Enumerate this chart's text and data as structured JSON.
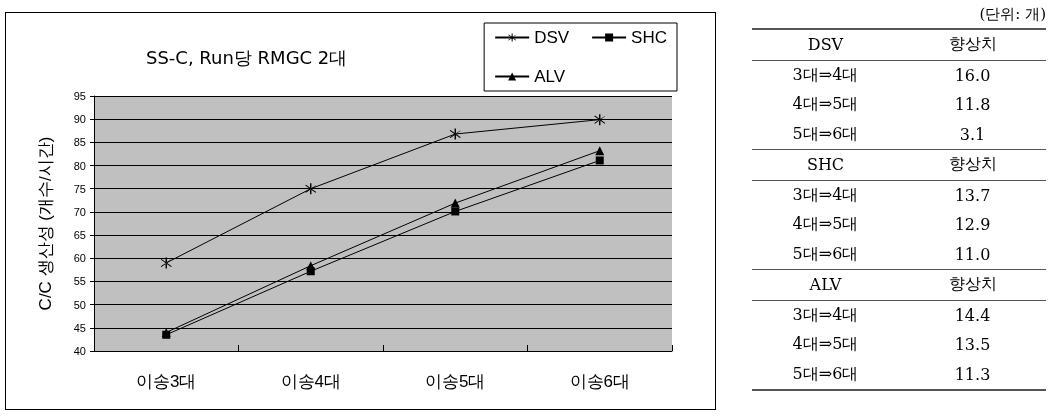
{
  "chart_data": [
    {
      "type": "line",
      "title": "SS-C, Run당 RMGC 2대",
      "ylabel": "C/C 생산성 (개수/시간)",
      "categories": [
        "이송3대",
        "이송4대",
        "이송5대",
        "이송6대"
      ],
      "series": [
        {
          "name": "DSV",
          "color": "#000000",
          "marker": "cross",
          "values": [
            59.0,
            75.0,
            86.8,
            89.9
          ]
        },
        {
          "name": "SHC",
          "color": "#000000",
          "marker": "square",
          "values": [
            43.5,
            57.2,
            70.1,
            81.1
          ]
        },
        {
          "name": "ALV",
          "color": "#000000",
          "marker": "triangle",
          "values": [
            44.0,
            58.4,
            71.9,
            83.2
          ]
        }
      ],
      "ylim": [
        40,
        95
      ],
      "yticks": [
        40,
        45,
        50,
        55,
        60,
        65,
        70,
        75,
        80,
        85,
        90,
        95
      ],
      "grid": "y",
      "legend": "top right",
      "line_style": "solid"
    },
    {
      "type": "other",
      "subtitle": "(단위: 개)",
      "annotations": [
        "DSV",
        "향상치",
        "3대⇒4대",
        "16.0",
        "4대⇒5대",
        "11.8",
        "5대⇒6대",
        "3.1",
        "SHC",
        "향상치",
        "3대⇒4대",
        "13.7",
        "4대⇒5대",
        "12.9",
        "5대⇒6대",
        "11.0",
        "ALV",
        "향상치",
        "3대⇒4대",
        "14.4",
        "4대⇒5대",
        "13.5",
        "5대⇒6대",
        "11.3"
      ]
    }
  ]
}
